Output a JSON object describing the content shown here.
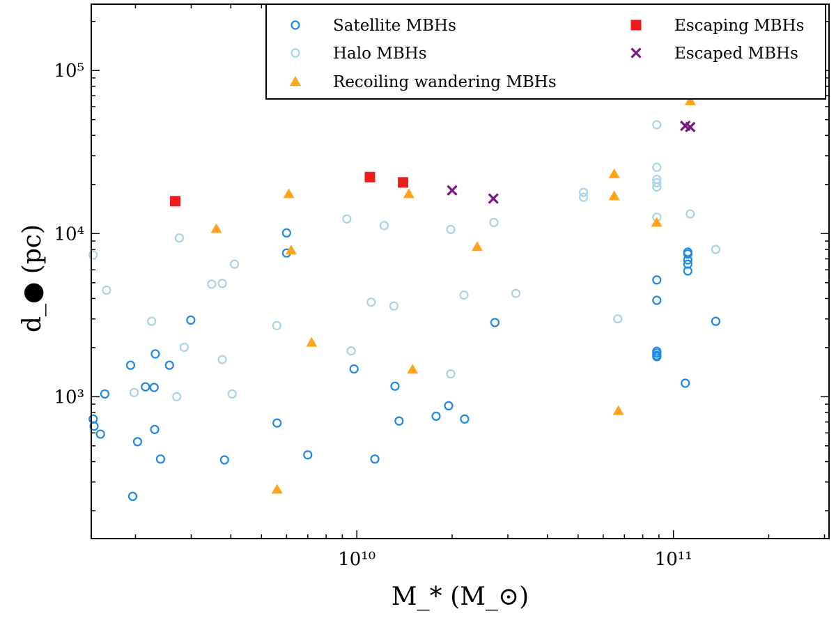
{
  "chart_data": {
    "type": "scatter",
    "title": "",
    "xlabel": "M_* (M_⊙)",
    "ylabel": "d_● (pc)",
    "xscale": "log",
    "yscale": "log",
    "xlim": [
      1450000000.0,
      310000000000.0
    ],
    "ylim": [
      135,
      255000.0
    ],
    "x_major_ticks": [
      {
        "value": 10000000000.0,
        "label": "10¹⁰"
      },
      {
        "value": 100000000000.0,
        "label": "10¹¹"
      }
    ],
    "y_major_ticks": [
      {
        "value": 1000.0,
        "label": "10³"
      },
      {
        "value": 10000.0,
        "label": "10⁴"
      },
      {
        "value": 100000.0,
        "label": "10⁵"
      }
    ],
    "legend_position": "top-right",
    "series": [
      {
        "name": "Satellite MBHs",
        "marker": "open-circle",
        "color": "#1e88e5",
        "points": [
          [
            1470000000.0,
            730
          ],
          [
            1480000000.0,
            660
          ],
          [
            1550000000.0,
            590
          ],
          [
            1600000000.0,
            1040
          ],
          [
            1930000000.0,
            1560
          ],
          [
            1960000000.0,
            245
          ],
          [
            2030000000.0,
            530
          ],
          [
            2150000000.0,
            1150
          ],
          [
            2290000000.0,
            1140
          ],
          [
            2300000000.0,
            630
          ],
          [
            2310000000.0,
            1830
          ],
          [
            2400000000.0,
            415
          ],
          [
            2560000000.0,
            1560
          ],
          [
            2990000000.0,
            2950
          ],
          [
            3820000000.0,
            410
          ],
          [
            5600000000.0,
            690
          ],
          [
            6000000000.0,
            10100
          ],
          [
            6000000000.0,
            7600
          ],
          [
            7000000000.0,
            440
          ],
          [
            9800000000.0,
            1480
          ],
          [
            11400000000.0,
            415
          ],
          [
            13200000000.0,
            1160
          ],
          [
            13600000000.0,
            710
          ],
          [
            17800000000.0,
            760
          ],
          [
            19500000000.0,
            880
          ],
          [
            21900000000.0,
            730
          ],
          [
            27300000000.0,
            2850
          ],
          [
            88600000000.0,
            5200
          ],
          [
            88600000000.0,
            3900
          ],
          [
            88600000000.0,
            1900
          ],
          [
            88600000000.0,
            1850
          ],
          [
            88600000000.0,
            1790
          ],
          [
            88600000000.0,
            1760
          ],
          [
            109000000000.0,
            1210
          ],
          [
            111000000000.0,
            7700
          ],
          [
            111000000000.0,
            7500
          ],
          [
            111000000000.0,
            6900
          ],
          [
            111000000000.0,
            6500
          ],
          [
            111000000000.0,
            5900
          ],
          [
            136000000000.0,
            2900
          ]
        ]
      },
      {
        "name": "Halo MBHs",
        "marker": "open-circle",
        "color": "#a9d3e8",
        "points": [
          [
            1470000000.0,
            7400
          ],
          [
            1620000000.0,
            4500
          ],
          [
            1980000000.0,
            1060
          ],
          [
            2250000000.0,
            2900
          ],
          [
            2700000000.0,
            1000
          ],
          [
            2750000000.0,
            9400
          ],
          [
            2850000000.0,
            2010
          ],
          [
            3480000000.0,
            4900
          ],
          [
            3760000000.0,
            1690
          ],
          [
            3760000000.0,
            4950
          ],
          [
            4040000000.0,
            1040
          ],
          [
            4110000000.0,
            6500
          ],
          [
            5590000000.0,
            2730
          ],
          [
            9300000000.0,
            12300
          ],
          [
            9600000000.0,
            1910
          ],
          [
            11100000000.0,
            3800
          ],
          [
            12200000000.0,
            11200
          ],
          [
            13100000000.0,
            3600
          ],
          [
            19800000000.0,
            10600
          ],
          [
            19800000000.0,
            1380
          ],
          [
            21800000000.0,
            4200
          ],
          [
            27100000000.0,
            11700
          ],
          [
            31800000000.0,
            4300
          ],
          [
            52000000000.0,
            17900
          ],
          [
            52000000000.0,
            16700
          ],
          [
            66700000000.0,
            3000
          ],
          [
            88600000000.0,
            46500
          ],
          [
            88600000000.0,
            25500
          ],
          [
            88600000000.0,
            21500
          ],
          [
            88600000000.0,
            20500
          ],
          [
            88600000000.0,
            19300
          ],
          [
            88600000000.0,
            12600
          ],
          [
            113000000000.0,
            13200
          ],
          [
            136000000000.0,
            8000
          ]
        ]
      },
      {
        "name": "Recoiling wandering MBHs",
        "marker": "triangle",
        "color": "#ffa31a",
        "points": [
          [
            3600000000.0,
            10700
          ],
          [
            5600000000.0,
            270
          ],
          [
            6100000000.0,
            17500
          ],
          [
            6200000000.0,
            7900
          ],
          [
            7200000000.0,
            2150
          ],
          [
            14600000000.0,
            17500
          ],
          [
            15000000000.0,
            1470
          ],
          [
            24000000000.0,
            8300
          ],
          [
            65000000000.0,
            23200
          ],
          [
            65000000000.0,
            17000
          ],
          [
            67000000000.0,
            820
          ],
          [
            88500000000.0,
            11700
          ],
          [
            113000000000.0,
            65000
          ]
        ]
      },
      {
        "name": "Escaping MBHs",
        "marker": "square",
        "color": "#ee1c1c",
        "points": [
          [
            2670000000.0,
            15800
          ],
          [
            11000000000.0,
            22200
          ],
          [
            14000000000.0,
            20600
          ]
        ]
      },
      {
        "name": "Escaped MBHs",
        "marker": "x",
        "color": "#7a1680",
        "points": [
          [
            20000000000.0,
            18400
          ],
          [
            27000000000.0,
            16400
          ],
          [
            109000000000.0,
            45800
          ],
          [
            113000000000.0,
            45000
          ]
        ]
      }
    ],
    "legend_columns": [
      [
        "Satellite MBHs",
        "Halo MBHs",
        "Recoiling wandering MBHs"
      ],
      [
        "Escaping MBHs",
        "Escaped MBHs"
      ]
    ]
  }
}
